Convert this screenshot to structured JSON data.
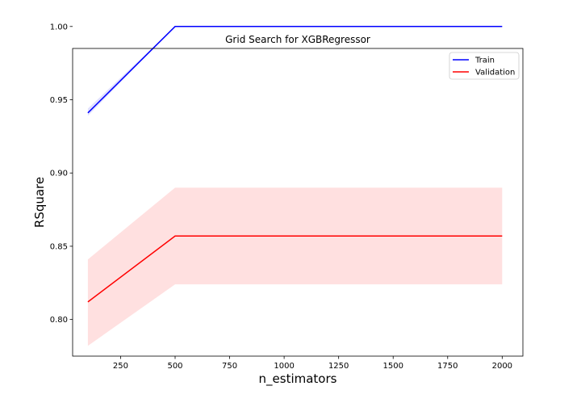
{
  "chart_data": {
    "type": "line",
    "title": "Grid Search for XGBRegressor",
    "xlabel": "n_estimators",
    "ylabel": "RSquare",
    "xlim": [
      30,
      2095
    ],
    "ylim": [
      0.775,
      0.985
    ],
    "xticks": [
      250,
      500,
      750,
      1000,
      1250,
      1500,
      1750,
      2000
    ],
    "yticks": [
      0.8,
      0.85,
      0.9,
      0.95,
      1.0
    ],
    "xtick_labels": [
      "250",
      "500",
      "750",
      "1000",
      "1250",
      "1500",
      "1750",
      "2000"
    ],
    "ytick_labels": [
      "0.80",
      "0.85",
      "0.90",
      "0.95",
      "1.00"
    ],
    "grid": false,
    "legend_position": "top-right",
    "x": [
      100,
      500,
      2000
    ],
    "series": [
      {
        "name": "Train",
        "color": "#0000ff",
        "values": [
          0.941,
          1.0,
          1.0
        ],
        "lower": [
          0.939,
          1.0,
          1.0
        ],
        "upper": [
          0.944,
          1.0,
          1.0
        ]
      },
      {
        "name": "Validation",
        "color": "#ff0000",
        "values": [
          0.812,
          0.857,
          0.857
        ],
        "lower": [
          0.782,
          0.824,
          0.824
        ],
        "upper": [
          0.841,
          0.89,
          0.89
        ]
      }
    ]
  }
}
